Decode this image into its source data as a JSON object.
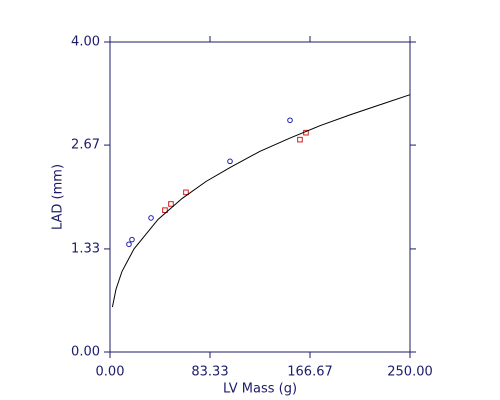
{
  "chart_data": {
    "type": "scatter",
    "xlabel": "LV Mass (g)",
    "ylabel": "LAD (mm)",
    "xlim": [
      0,
      250
    ],
    "ylim": [
      0,
      4
    ],
    "xticks": [
      {
        "value": 0,
        "label": "0.00"
      },
      83.33,
      166.67,
      {
        "value": 250,
        "label": "250.00"
      }
    ],
    "yticks": [
      {
        "value": 0,
        "label": "0.00"
      },
      1.33,
      2.67,
      {
        "value": 4,
        "label": "4.00"
      }
    ],
    "axis_color": "#1c1c6b",
    "series": [
      {
        "style": "circle",
        "color": "#1f1fb0",
        "x": [
          15.8,
          18.3,
          34.2,
          100,
          150
        ],
        "values": [
          1.39,
          1.45,
          1.73,
          2.46,
          2.99
        ]
      },
      {
        "style": "square",
        "color": "#d02020",
        "x": [
          45.8,
          50.8,
          63.3,
          158.3,
          163.3
        ],
        "values": [
          1.83,
          1.91,
          2.06,
          2.74,
          2.83
        ]
      },
      {
        "style": "line",
        "color": "#000000",
        "x": [
          2,
          5,
          10,
          20,
          40,
          60,
          80,
          100,
          125,
          150,
          175,
          200,
          225,
          250
        ],
        "values": [
          0.58,
          0.81,
          1.04,
          1.33,
          1.71,
          1.98,
          2.2,
          2.38,
          2.59,
          2.76,
          2.92,
          3.06,
          3.19,
          3.32
        ]
      }
    ]
  }
}
